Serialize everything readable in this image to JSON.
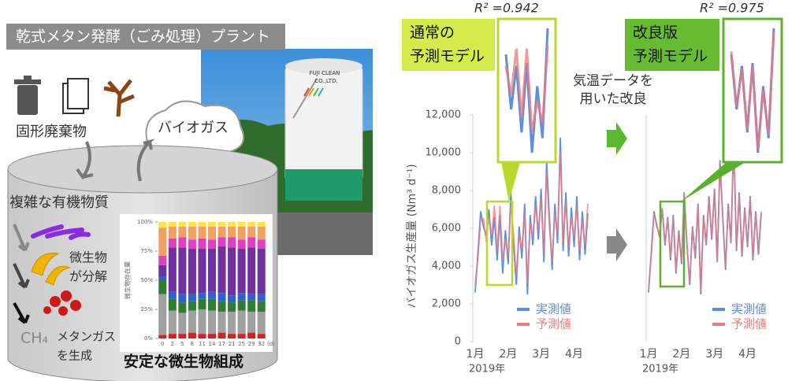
{
  "left_panel": {
    "title": "乾式メタン発酵（ごみ処理）プラント",
    "photo_sign": [
      "FUJI CLEAN",
      "CO.,LTD."
    ],
    "waste_label": "固形廃棄物",
    "biogas_label": "バイオガス",
    "organic_label": "複雑な有機物質",
    "decompose_label": [
      "微生物",
      "が分解"
    ],
    "ch4_label": "CH₄",
    "methane_label": [
      "メタンガス",
      "を生成"
    ],
    "stable_label": "安定な微生物組成"
  },
  "middle_label": [
    "気温データを",
    "用いた改良"
  ],
  "chart_data": [
    {
      "type": "line",
      "model_label": [
        "通常の",
        "予測モデル"
      ],
      "annotation": "R² =0.942",
      "y_label": "バイオガス生産量 (Nm³ d⁻¹)",
      "year_label": "2019年",
      "categories": [
        "1月",
        null,
        null,
        null,
        null,
        null,
        null,
        null,
        null,
        null,
        null,
        null,
        "2月",
        null,
        null,
        null,
        null,
        null,
        null,
        null,
        null,
        null,
        null,
        null,
        "3月",
        null,
        null,
        null,
        null,
        null,
        null,
        null,
        null,
        null,
        null,
        null,
        "4月",
        null,
        null,
        null,
        null,
        null
      ],
      "series": [
        {
          "name": "実測値",
          "color": "#5b8fe0",
          "values": [
            2600,
            4700,
            6900,
            6100,
            5600,
            7000,
            5100,
            6600,
            4300,
            6700,
            3600,
            5900,
            4100,
            7900,
            5100,
            3000,
            6100,
            4400,
            7300,
            2500,
            6700,
            5100,
            7700,
            5400,
            8100,
            4200,
            9600,
            6600,
            3800,
            7300,
            5200,
            10800,
            4800,
            7900,
            4500,
            7100,
            5000,
            7700,
            4300,
            6900,
            4600,
            6800
          ]
        },
        {
          "name": "予測値",
          "color": "#f07878",
          "values": [
            3000,
            4400,
            6500,
            6500,
            5300,
            6600,
            5600,
            7200,
            4800,
            7200,
            4300,
            5400,
            4600,
            7300,
            5600,
            3500,
            5700,
            4900,
            6800,
            3100,
            6300,
            5600,
            7200,
            5900,
            7600,
            4800,
            9000,
            6100,
            4300,
            6800,
            5700,
            10100,
            5300,
            7400,
            5000,
            6600,
            5500,
            7200,
            4800,
            6400,
            5100,
            7300
          ]
        }
      ],
      "ylim": [
        0,
        12000
      ],
      "yticks": [
        0,
        {
          "value": 2000,
          "label": "2,000"
        },
        {
          "value": 4000,
          "label": "4,000"
        },
        {
          "value": 6000,
          "label": "6,000"
        },
        {
          "value": 8000,
          "label": "8,000"
        },
        {
          "value": 10000,
          "label": "10,000"
        },
        {
          "value": 12000,
          "label": "12,000"
        }
      ],
      "legend_position": "lower right"
    },
    {
      "type": "line",
      "model_label": [
        "改良版",
        "予測モデル"
      ],
      "annotation": "R² =0.975",
      "year_label": "2019年",
      "categories": [
        "1月",
        null,
        null,
        null,
        null,
        null,
        null,
        null,
        null,
        null,
        null,
        null,
        "2月",
        null,
        null,
        null,
        null,
        null,
        null,
        null,
        null,
        null,
        null,
        null,
        "3月",
        null,
        null,
        null,
        null,
        null,
        null,
        null,
        null,
        null,
        null,
        null,
        "4月",
        null,
        null,
        null,
        null,
        null
      ],
      "series": [
        {
          "name": "実測値",
          "color": "#5b8fe0",
          "values": [
            2600,
            4700,
            6900,
            6100,
            5600,
            7000,
            5100,
            6600,
            4300,
            6700,
            3600,
            5900,
            4100,
            7900,
            5100,
            3000,
            6100,
            4400,
            7300,
            2500,
            6700,
            5100,
            7700,
            5400,
            8100,
            4200,
            9600,
            6600,
            3800,
            7300,
            5200,
            10800,
            4800,
            7900,
            4500,
            7100,
            5000,
            7700,
            4300,
            6900,
            4600,
            6800
          ]
        },
        {
          "name": "予測値",
          "color": "#f07878",
          "values": [
            2700,
            4600,
            6800,
            6200,
            5500,
            7100,
            5200,
            6500,
            4400,
            6600,
            3700,
            5800,
            4200,
            7800,
            5200,
            3100,
            6000,
            4500,
            7200,
            2600,
            6600,
            5200,
            7600,
            5500,
            8000,
            4300,
            9500,
            6500,
            3900,
            7200,
            5300,
            10700,
            4900,
            7800,
            4600,
            7000,
            5100,
            7600,
            4400,
            6800,
            4700,
            6900
          ]
        }
      ],
      "ylim": [
        0,
        12000
      ],
      "legend_position": "lower right"
    },
    {
      "type": "bar",
      "stacked": true,
      "y_label": "微生物存在量",
      "x_unit": "(d)",
      "categories": [
        "0",
        "2",
        "5",
        "8",
        "11",
        "14",
        "17",
        "21",
        "25",
        "29",
        "32"
      ],
      "series": [
        {
          "color": "#d82020",
          "values": [
            3,
            4,
            4,
            5,
            4,
            4,
            5,
            4,
            4,
            5,
            4
          ]
        },
        {
          "color": "#a0a0a0",
          "values": [
            35,
            20,
            18,
            19,
            21,
            20,
            18,
            19,
            20,
            18,
            19
          ]
        },
        {
          "color": "#2e7d32",
          "values": [
            12,
            10,
            9,
            8,
            9,
            10,
            9,
            8,
            9,
            10,
            9
          ]
        },
        {
          "color": "#3060d0",
          "values": [
            3,
            6,
            7,
            6,
            5,
            6,
            7,
            6,
            6,
            5,
            6
          ]
        },
        {
          "color": "#7030a0",
          "values": [
            10,
            38,
            40,
            39,
            38,
            37,
            40,
            41,
            38,
            40,
            39
          ]
        },
        {
          "color": "#e040c0",
          "values": [
            8,
            8,
            9,
            8,
            9,
            8,
            8,
            9,
            8,
            9,
            8
          ]
        },
        {
          "color": "#f0a060",
          "values": [
            24,
            10,
            9,
            11,
            10,
            11,
            9,
            9,
            11,
            9,
            11
          ]
        },
        {
          "color": "#ffe24a",
          "values": [
            5,
            4,
            4,
            4,
            4,
            4,
            4,
            4,
            4,
            4,
            4
          ]
        }
      ],
      "ylim": [
        0,
        100
      ],
      "yticks": [
        {
          "value": 0,
          "label": "0%"
        },
        {
          "value": 25,
          "label": "25%"
        },
        {
          "value": 50,
          "label": "50%"
        },
        {
          "value": 75,
          "label": "75%"
        },
        {
          "value": 100,
          "label": "100%"
        }
      ]
    }
  ]
}
